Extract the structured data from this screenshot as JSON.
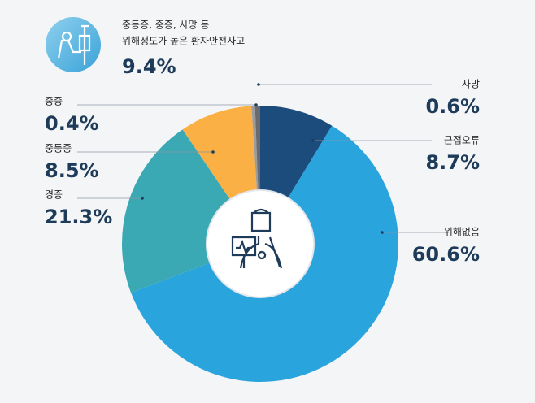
{
  "chart_data": {
    "type": "donut",
    "highlight": {
      "lines": [
        "중등증, 중증, 사망 등",
        "위해정도가 높은 환자안전사고"
      ],
      "value": 9.4,
      "value_label": "9.4%"
    },
    "categories": [
      "근접오류",
      "위해없음",
      "경증",
      "중등증",
      "중증",
      "사망"
    ],
    "values": [
      8.7,
      60.6,
      21.3,
      8.5,
      0.4,
      0.6
    ],
    "value_labels": [
      "8.7%",
      "60.6%",
      "21.3%",
      "8.5%",
      "0.4%",
      "0.6%"
    ],
    "colors": [
      "#1c4c7c",
      "#29a4dc",
      "#3aa9b4",
      "#fab044",
      "#9c9c9c",
      "#6a6b6e"
    ]
  }
}
